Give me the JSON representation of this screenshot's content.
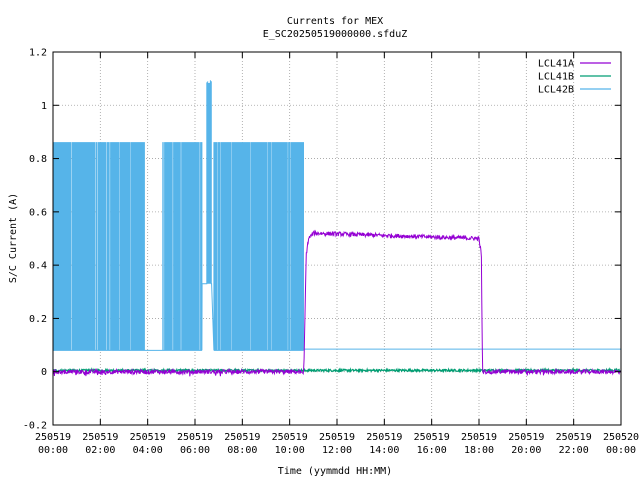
{
  "chart_data": {
    "type": "line",
    "title": "Currents for MEX",
    "subtitle": "E_SC20250519000000.sfduZ",
    "xlabel": "Time (yymmdd HH:MM)",
    "ylabel": "S/C Current (A)",
    "xlim_hours": [
      0,
      24
    ],
    "ylim": [
      -0.2,
      1.2
    ],
    "grid": true,
    "legend_position": "top-right",
    "y_ticks": [
      {
        "value": -0.2,
        "label": "-0.2"
      },
      {
        "value": 0,
        "label": "0"
      },
      {
        "value": 0.2,
        "label": "0.2"
      },
      {
        "value": 0.4,
        "label": "0.4"
      },
      {
        "value": 0.6,
        "label": "0.6"
      },
      {
        "value": 0.8,
        "label": "0.8"
      },
      {
        "value": 1.0,
        "label": "1"
      },
      {
        "value": 1.2,
        "label": "1.2"
      }
    ],
    "x_ticks": [
      {
        "hour": 0,
        "date": "250519",
        "time": "00:00"
      },
      {
        "hour": 2,
        "date": "250519",
        "time": "02:00"
      },
      {
        "hour": 4,
        "date": "250519",
        "time": "04:00"
      },
      {
        "hour": 6,
        "date": "250519",
        "time": "06:00"
      },
      {
        "hour": 8,
        "date": "250519",
        "time": "08:00"
      },
      {
        "hour": 10,
        "date": "250519",
        "time": "10:00"
      },
      {
        "hour": 12,
        "date": "250519",
        "time": "12:00"
      },
      {
        "hour": 14,
        "date": "250519",
        "time": "14:00"
      },
      {
        "hour": 16,
        "date": "250519",
        "time": "16:00"
      },
      {
        "hour": 18,
        "date": "250519",
        "time": "18:00"
      },
      {
        "hour": 20,
        "date": "250519",
        "time": "20:00"
      },
      {
        "hour": 22,
        "date": "250519",
        "time": "22:00"
      },
      {
        "hour": 24,
        "date": "250520",
        "time": "00:00"
      }
    ],
    "series": [
      {
        "name": "LCL41A",
        "color": "#9400d3",
        "description_points": [
          [
            0,
            0.0
          ],
          [
            10.6,
            0.0
          ],
          [
            10.7,
            0.44
          ],
          [
            10.8,
            0.5
          ],
          [
            11.0,
            0.52
          ],
          [
            18.0,
            0.5
          ],
          [
            18.1,
            0.44
          ],
          [
            18.15,
            0.0
          ],
          [
            24,
            0.0
          ]
        ],
        "noise": 0.008
      },
      {
        "name": "LCL41B",
        "color": "#009e73",
        "description_points": [
          [
            0,
            0.005
          ],
          [
            24,
            0.005
          ]
        ],
        "noise": 0.004
      },
      {
        "name": "LCL42B",
        "color": "#56b4e9",
        "segments": [
          {
            "type": "oscillating",
            "x_start": 0.0,
            "x_end": 3.85,
            "low": 0.08,
            "high": 0.86
          },
          {
            "type": "flat",
            "x_start": 3.85,
            "x_end": 4.6,
            "value": 0.08
          },
          {
            "type": "oscillating",
            "x_start": 4.6,
            "x_end": 6.3,
            "low": 0.08,
            "high": 0.86
          },
          {
            "type": "flat",
            "x_start": 6.3,
            "x_end": 6.5,
            "value": 0.33
          },
          {
            "type": "spike",
            "x_start": 6.5,
            "x_end": 6.7,
            "low": 0.33,
            "high": 1.1
          },
          {
            "type": "oscillating",
            "x_start": 6.8,
            "x_end": 10.6,
            "low": 0.08,
            "high": 0.86
          },
          {
            "type": "flat",
            "x_start": 10.6,
            "x_end": 24.0,
            "value": 0.085
          }
        ]
      }
    ]
  }
}
